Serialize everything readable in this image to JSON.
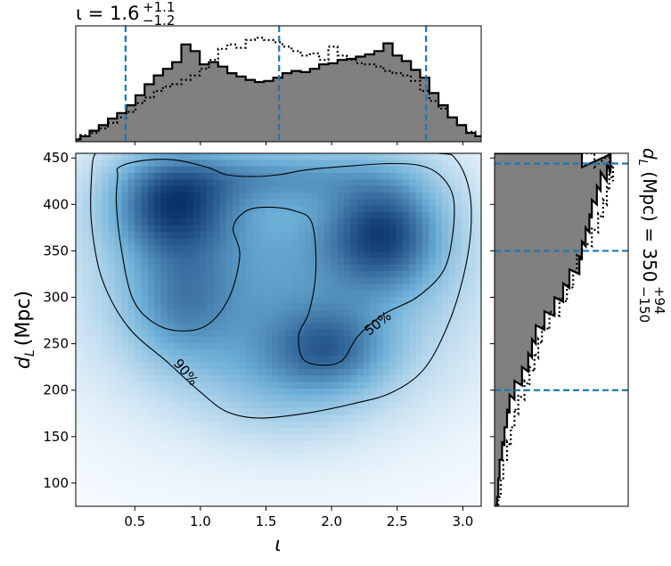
{
  "chart_data": {
    "type": "heatmap",
    "description_axes": {
      "x_symbol": "ι",
      "y_symbol_main": "d",
      "y_symbol_sub": "L",
      "y_unit": "(Mpc)"
    },
    "xlim": [
      0.05,
      3.14
    ],
    "ylim": [
      75,
      455
    ],
    "x_ticks": [
      0.5,
      1.0,
      1.5,
      2.0,
      2.5,
      3.0
    ],
    "x_tick_labels": [
      "0.5",
      "1.0",
      "1.5",
      "2.0",
      "2.5",
      "3.0"
    ],
    "y_ticks": [
      100,
      150,
      200,
      250,
      300,
      350,
      400,
      450
    ],
    "y_tick_labels": [
      "100",
      "150",
      "200",
      "250",
      "300",
      "350",
      "400",
      "450"
    ],
    "top_title": {
      "symbol": "ι",
      "equals": " = ",
      "value": "1.6",
      "upper": "+1.1",
      "lower": "−1.2"
    },
    "side_title": {
      "symbol": "d",
      "sub": "L",
      "unit": " (Mpc) = ",
      "value": "350",
      "upper": "+94",
      "lower": "−150"
    },
    "x_quantiles": [
      0.43,
      1.6,
      2.72
    ],
    "y_quantiles": [
      200,
      350,
      444
    ],
    "contour_labels": [
      "50%",
      "90%"
    ],
    "density_blobs": [
      {
        "x": 1.6,
        "y": 325,
        "sx": 0.95,
        "sy": 95,
        "w": 0.55
      },
      {
        "x": 0.78,
        "y": 400,
        "sx": 0.32,
        "sy": 38,
        "w": 0.85
      },
      {
        "x": 2.4,
        "y": 370,
        "sx": 0.3,
        "sy": 42,
        "w": 0.8
      },
      {
        "x": 0.85,
        "y": 295,
        "sx": 0.28,
        "sy": 45,
        "w": 0.4
      },
      {
        "x": 2.0,
        "y": 245,
        "sx": 0.3,
        "sy": 30,
        "w": 0.45
      },
      {
        "x": 1.55,
        "y": 430,
        "sx": 0.6,
        "sy": 20,
        "w": 0.35
      },
      {
        "x": 1.7,
        "y": 220,
        "sx": 0.45,
        "sy": 45,
        "w": 0.25
      }
    ],
    "contour_50": [
      [
        0.38,
        440
      ],
      [
        0.55,
        447
      ],
      [
        0.8,
        448
      ],
      [
        1.05,
        440
      ],
      [
        1.2,
        432
      ],
      [
        1.4,
        430
      ],
      [
        1.6,
        432
      ],
      [
        1.8,
        437
      ],
      [
        2.1,
        441
      ],
      [
        2.45,
        444
      ],
      [
        2.7,
        441
      ],
      [
        2.85,
        428
      ],
      [
        2.93,
        405
      ],
      [
        2.92,
        365
      ],
      [
        2.85,
        328
      ],
      [
        2.65,
        300
      ],
      [
        2.4,
        282
      ],
      [
        2.2,
        258
      ],
      [
        2.08,
        232
      ],
      [
        1.92,
        227
      ],
      [
        1.78,
        234
      ],
      [
        1.75,
        260
      ],
      [
        1.83,
        285
      ],
      [
        1.88,
        330
      ],
      [
        1.85,
        380
      ],
      [
        1.72,
        393
      ],
      [
        1.52,
        397
      ],
      [
        1.35,
        393
      ],
      [
        1.25,
        375
      ],
      [
        1.3,
        345
      ],
      [
        1.22,
        300
      ],
      [
        1.05,
        270
      ],
      [
        0.82,
        264
      ],
      [
        0.62,
        275
      ],
      [
        0.48,
        300
      ],
      [
        0.4,
        350
      ],
      [
        0.36,
        400
      ],
      [
        0.37,
        430
      ]
    ],
    "contour_90": [
      [
        0.2,
        455
      ],
      [
        0.3,
        455
      ],
      [
        1.0,
        455
      ],
      [
        2.1,
        455
      ],
      [
        2.8,
        455
      ],
      [
        2.95,
        448
      ],
      [
        3.05,
        415
      ],
      [
        3.06,
        370
      ],
      [
        3.0,
        320
      ],
      [
        2.88,
        268
      ],
      [
        2.7,
        222
      ],
      [
        2.45,
        197
      ],
      [
        2.15,
        185
      ],
      [
        1.8,
        175
      ],
      [
        1.45,
        170
      ],
      [
        1.2,
        177
      ],
      [
        1.0,
        198
      ],
      [
        0.75,
        230
      ],
      [
        0.45,
        268
      ],
      [
        0.25,
        320
      ],
      [
        0.17,
        380
      ],
      [
        0.17,
        430
      ]
    ],
    "top_hist_solid": [
      [
        0.05,
        0.02
      ],
      [
        0.12,
        0.05
      ],
      [
        0.19,
        0.1
      ],
      [
        0.26,
        0.15
      ],
      [
        0.33,
        0.21
      ],
      [
        0.4,
        0.26
      ],
      [
        0.47,
        0.33
      ],
      [
        0.54,
        0.42
      ],
      [
        0.61,
        0.52
      ],
      [
        0.68,
        0.6
      ],
      [
        0.75,
        0.66
      ],
      [
        0.82,
        0.72
      ],
      [
        0.89,
        0.88
      ],
      [
        0.96,
        0.82
      ],
      [
        1.03,
        0.7
      ],
      [
        1.1,
        0.72
      ],
      [
        1.17,
        0.68
      ],
      [
        1.24,
        0.62
      ],
      [
        1.31,
        0.59
      ],
      [
        1.38,
        0.56
      ],
      [
        1.45,
        0.54
      ],
      [
        1.52,
        0.55
      ],
      [
        1.59,
        0.58
      ],
      [
        1.66,
        0.62
      ],
      [
        1.73,
        0.64
      ],
      [
        1.8,
        0.63
      ],
      [
        1.87,
        0.66
      ],
      [
        1.94,
        0.7
      ],
      [
        2.01,
        0.71
      ],
      [
        2.08,
        0.74
      ],
      [
        2.15,
        0.75
      ],
      [
        2.22,
        0.77
      ],
      [
        2.29,
        0.79
      ],
      [
        2.36,
        0.82
      ],
      [
        2.43,
        0.89
      ],
      [
        2.5,
        0.78
      ],
      [
        2.57,
        0.73
      ],
      [
        2.64,
        0.65
      ],
      [
        2.71,
        0.58
      ],
      [
        2.78,
        0.44
      ],
      [
        2.85,
        0.33
      ],
      [
        2.92,
        0.22
      ],
      [
        2.99,
        0.15
      ],
      [
        3.06,
        0.08
      ],
      [
        3.13,
        0.05
      ]
    ],
    "top_hist_dotted": [
      [
        0.05,
        0.03
      ],
      [
        0.12,
        0.06
      ],
      [
        0.19,
        0.08
      ],
      [
        0.26,
        0.12
      ],
      [
        0.33,
        0.17
      ],
      [
        0.4,
        0.22
      ],
      [
        0.47,
        0.27
      ],
      [
        0.54,
        0.35
      ],
      [
        0.61,
        0.4
      ],
      [
        0.68,
        0.46
      ],
      [
        0.75,
        0.5
      ],
      [
        0.82,
        0.52
      ],
      [
        0.89,
        0.56
      ],
      [
        0.96,
        0.6
      ],
      [
        1.03,
        0.66
      ],
      [
        1.1,
        0.74
      ],
      [
        1.17,
        0.84
      ],
      [
        1.24,
        0.88
      ],
      [
        1.31,
        0.85
      ],
      [
        1.38,
        0.92
      ],
      [
        1.45,
        0.94
      ],
      [
        1.52,
        0.92
      ],
      [
        1.59,
        0.9
      ],
      [
        1.66,
        0.86
      ],
      [
        1.73,
        0.82
      ],
      [
        1.8,
        0.78
      ],
      [
        1.87,
        0.8
      ],
      [
        1.94,
        0.74
      ],
      [
        2.01,
        0.86
      ],
      [
        2.08,
        0.78
      ],
      [
        2.15,
        0.74
      ],
      [
        2.22,
        0.71
      ],
      [
        2.29,
        0.7
      ],
      [
        2.36,
        0.68
      ],
      [
        2.43,
        0.64
      ],
      [
        2.5,
        0.62
      ],
      [
        2.57,
        0.6
      ],
      [
        2.64,
        0.55
      ],
      [
        2.71,
        0.46
      ],
      [
        2.78,
        0.37
      ],
      [
        2.85,
        0.3
      ],
      [
        2.92,
        0.22
      ],
      [
        2.99,
        0.15
      ],
      [
        3.06,
        0.09
      ],
      [
        3.13,
        0.05
      ]
    ],
    "side_hist_solid": [
      [
        75,
        0.02
      ],
      [
        95,
        0.03
      ],
      [
        115,
        0.04
      ],
      [
        135,
        0.06
      ],
      [
        150,
        0.08
      ],
      [
        170,
        0.1
      ],
      [
        185,
        0.12
      ],
      [
        200,
        0.16
      ],
      [
        215,
        0.22
      ],
      [
        230,
        0.27
      ],
      [
        245,
        0.3
      ],
      [
        260,
        0.33
      ],
      [
        275,
        0.4
      ],
      [
        290,
        0.48
      ],
      [
        305,
        0.55
      ],
      [
        320,
        0.6
      ],
      [
        335,
        0.68
      ],
      [
        350,
        0.7
      ],
      [
        365,
        0.73
      ],
      [
        380,
        0.76
      ],
      [
        395,
        0.78
      ],
      [
        410,
        0.82
      ],
      [
        425,
        0.85
      ],
      [
        435,
        0.9
      ],
      [
        444,
        0.93
      ],
      [
        450,
        0.7
      ]
    ],
    "side_hist_dotted": [
      [
        75,
        0.03
      ],
      [
        95,
        0.05
      ],
      [
        115,
        0.07
      ],
      [
        135,
        0.1
      ],
      [
        150,
        0.13
      ],
      [
        170,
        0.16
      ],
      [
        185,
        0.19
      ],
      [
        200,
        0.24
      ],
      [
        215,
        0.28
      ],
      [
        230,
        0.32
      ],
      [
        245,
        0.35
      ],
      [
        260,
        0.38
      ],
      [
        275,
        0.44
      ],
      [
        290,
        0.52
      ],
      [
        305,
        0.58
      ],
      [
        320,
        0.63
      ],
      [
        335,
        0.66
      ],
      [
        350,
        0.7
      ],
      [
        365,
        0.78
      ],
      [
        380,
        0.83
      ],
      [
        395,
        0.87
      ],
      [
        410,
        0.9
      ],
      [
        425,
        0.92
      ],
      [
        435,
        0.95
      ],
      [
        444,
        0.92
      ],
      [
        450,
        0.8
      ]
    ],
    "colors": {
      "hist_fill": "#808080",
      "quantile_line": "#1f77b4",
      "density_low": "#f7fbff",
      "density_high": "#08306b"
    }
  }
}
